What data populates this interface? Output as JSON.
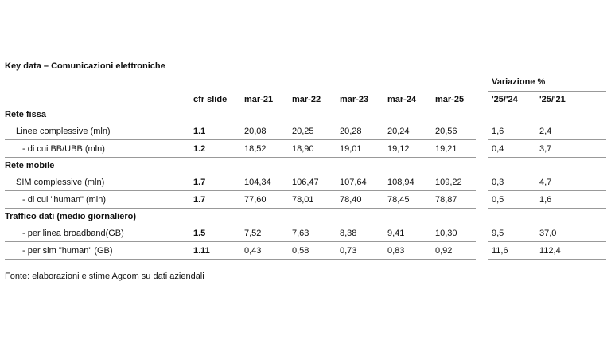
{
  "title": "Key data – Comunicazioni elettroniche",
  "group_header": "Variazione %",
  "columns": [
    "cfr slide",
    "mar-21",
    "mar-22",
    "mar-23",
    "mar-24",
    "mar-25",
    "'25/'24",
    "'25/'21"
  ],
  "sections": [
    {
      "title": "Rete fissa",
      "rows": [
        {
          "label": "Linee complessive (mln)",
          "cells": [
            "1.1",
            "20,08",
            "20,25",
            "20,28",
            "20,24",
            "20,56",
            "1,6",
            "2,4"
          ]
        },
        {
          "label": "- di cui BB/UBB (mln)",
          "cells": [
            "1.2",
            "18,52",
            "18,90",
            "19,01",
            "19,12",
            "19,21",
            "0,4",
            "3,7"
          ]
        }
      ]
    },
    {
      "title": "Rete mobile",
      "rows": [
        {
          "label": "SIM complessive (mln)",
          "cells": [
            "1.7",
            "104,34",
            "106,47",
            "107,64",
            "108,94",
            "109,22",
            "0,3",
            "4,7"
          ]
        },
        {
          "label": "- di cui \"human\" (mln)",
          "cells": [
            "1.7",
            "77,60",
            "78,01",
            "78,40",
            "78,45",
            "78,87",
            "0,5",
            "1,6"
          ]
        }
      ]
    },
    {
      "title": "Traffico dati (medio giornaliero)",
      "rows": [
        {
          "label": "- per linea broadband(GB)",
          "cells": [
            "1.5",
            "7,52",
            "7,63",
            "8,38",
            "9,41",
            "10,30",
            "9,5",
            "37,0"
          ]
        },
        {
          "label": "- per sim \"human\" (GB)",
          "cells": [
            "1.11",
            "0,43",
            "0,58",
            "0,73",
            "0,83",
            "0,92",
            "11,6",
            "112,4"
          ]
        }
      ]
    }
  ],
  "footer": "Fonte: elaborazioni e stime Agcom su dati aziendali"
}
